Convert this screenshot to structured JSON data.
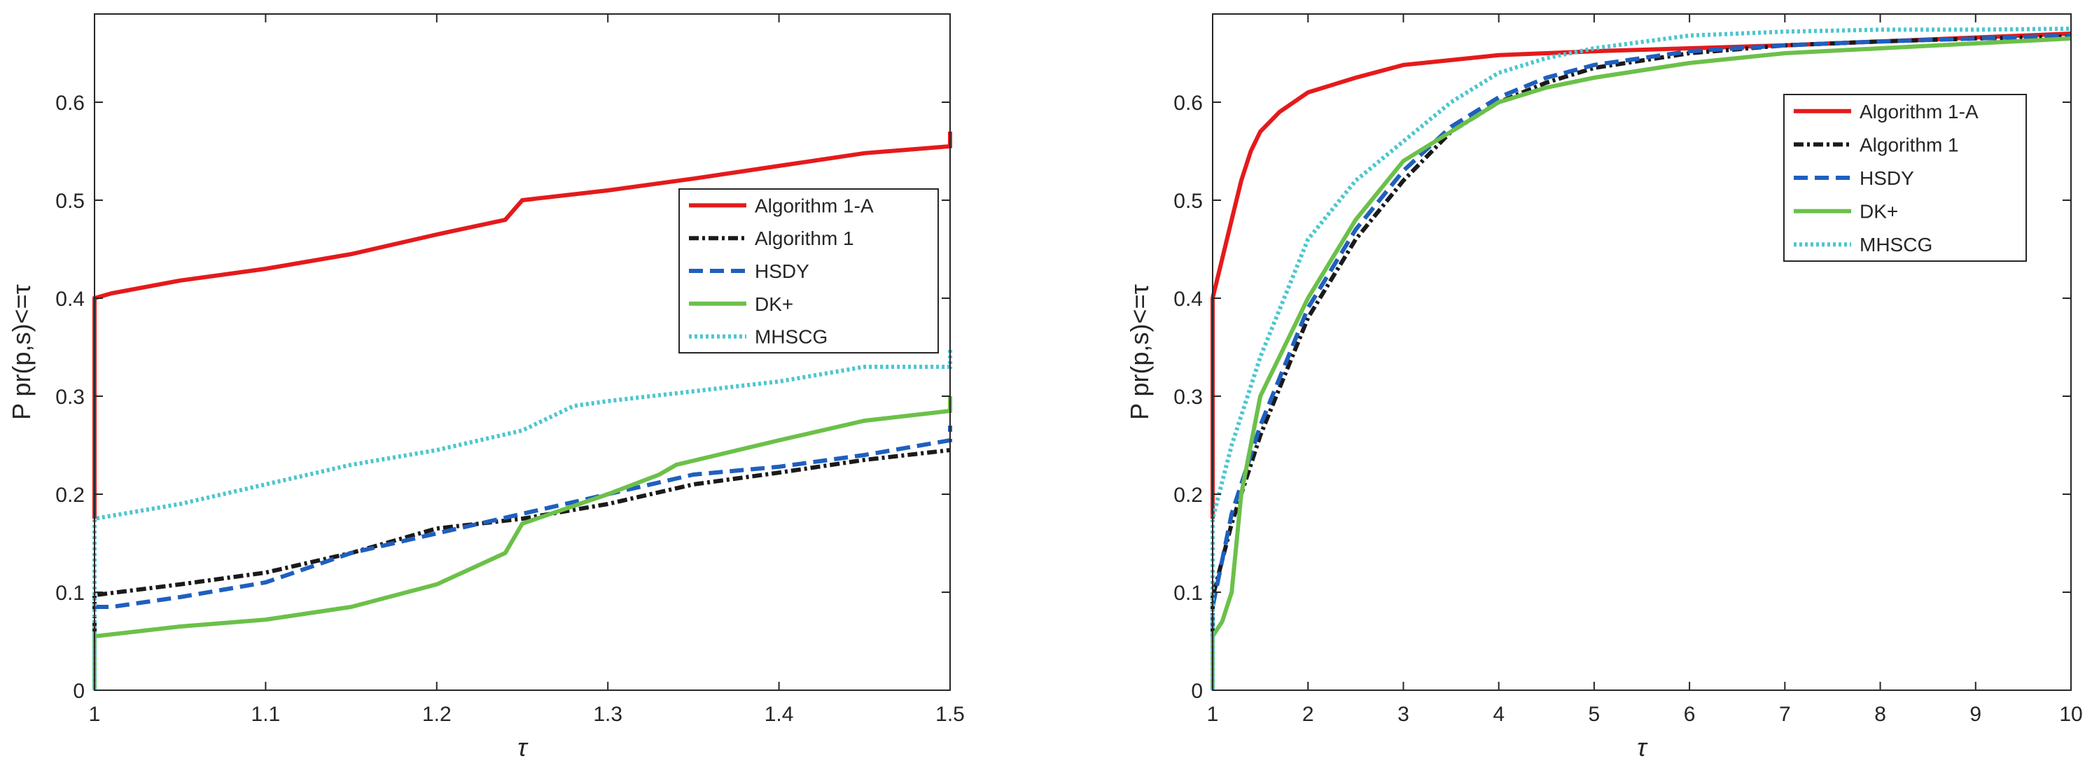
{
  "legend_labels": [
    "Algorithm 1-A",
    "Algorithm 1",
    "HSDY",
    "DK+",
    "MHSCG"
  ],
  "colors": {
    "Algorithm 1-A": "#e41a1c",
    "Algorithm 1": "#1a1a1a",
    "HSDY": "#1f5fbf",
    "DK+": "#6cc04a",
    "MHSCG": "#4cc6d0"
  },
  "chart_data": [
    {
      "type": "line",
      "title": "",
      "xlabel": "τ",
      "ylabel": "P pr(p,s)<=τ",
      "xlim": [
        1,
        1.5
      ],
      "ylim": [
        0,
        0.69
      ],
      "xticks": [
        1,
        1.1,
        1.2,
        1.3,
        1.4,
        1.5
      ],
      "xtick_labels": [
        "1",
        "1.1",
        "1.2",
        "1.3",
        "1.4",
        "1.5"
      ],
      "yticks": [
        0,
        0.1,
        0.2,
        0.3,
        0.4,
        0.5,
        0.6
      ],
      "ytick_labels": [
        "0",
        "0.1",
        "0.2",
        "0.3",
        "0.4",
        "0.5",
        "0.6"
      ],
      "legend_position": "right-middle",
      "series": [
        {
          "name": "Algorithm 1-A",
          "x": [
            1,
            1,
            1.01,
            1.05,
            1.1,
            1.15,
            1.2,
            1.24,
            1.25,
            1.3,
            1.35,
            1.4,
            1.45,
            1.5,
            1.5
          ],
          "y": [
            0.175,
            0.4,
            0.405,
            0.418,
            0.43,
            0.445,
            0.465,
            0.48,
            0.5,
            0.51,
            0.522,
            0.535,
            0.548,
            0.555,
            0.57
          ]
        },
        {
          "name": "Algorithm 1",
          "x": [
            1,
            1,
            1.05,
            1.1,
            1.15,
            1.2,
            1.25,
            1.3,
            1.35,
            1.4,
            1.45,
            1.5
          ],
          "y": [
            0.0,
            0.097,
            0.108,
            0.12,
            0.14,
            0.165,
            0.175,
            0.19,
            0.21,
            0.222,
            0.235,
            0.245
          ]
        },
        {
          "name": "HSDY",
          "x": [
            1,
            1.01,
            1.05,
            1.1,
            1.15,
            1.2,
            1.25,
            1.3,
            1.35,
            1.4,
            1.45,
            1.5,
            1.5
          ],
          "y": [
            0.085,
            0.085,
            0.095,
            0.11,
            0.14,
            0.16,
            0.18,
            0.2,
            0.22,
            0.228,
            0.24,
            0.255,
            0.27
          ]
        },
        {
          "name": "DK+",
          "x": [
            1,
            1,
            1.05,
            1.1,
            1.15,
            1.2,
            1.24,
            1.25,
            1.3,
            1.33,
            1.34,
            1.4,
            1.45,
            1.5,
            1.5
          ],
          "y": [
            0.0,
            0.055,
            0.065,
            0.072,
            0.085,
            0.108,
            0.14,
            0.17,
            0.2,
            0.22,
            0.23,
            0.255,
            0.275,
            0.285,
            0.3
          ]
        },
        {
          "name": "MHSCG",
          "x": [
            1,
            1,
            1.05,
            1.1,
            1.15,
            1.2,
            1.25,
            1.28,
            1.3,
            1.35,
            1.4,
            1.45,
            1.5,
            1.5
          ],
          "y": [
            0.0,
            0.175,
            0.19,
            0.21,
            0.23,
            0.245,
            0.265,
            0.29,
            0.295,
            0.305,
            0.315,
            0.33,
            0.33,
            0.35
          ]
        }
      ]
    },
    {
      "type": "line",
      "title": "",
      "xlabel": "τ",
      "ylabel": "P pr(p,s)<=τ",
      "xlim": [
        1,
        10
      ],
      "ylim": [
        0,
        0.69
      ],
      "xticks": [
        1,
        2,
        3,
        4,
        5,
        6,
        7,
        8,
        9,
        10
      ],
      "xtick_labels": [
        "1",
        "2",
        "3",
        "4",
        "5",
        "6",
        "7",
        "8",
        "9",
        "10"
      ],
      "yticks": [
        0,
        0.1,
        0.2,
        0.3,
        0.4,
        0.5,
        0.6
      ],
      "ytick_labels": [
        "0",
        "0.1",
        "0.2",
        "0.3",
        "0.4",
        "0.5",
        "0.6"
      ],
      "legend_position": "top-right",
      "series": [
        {
          "name": "Algorithm 1-A",
          "x": [
            1,
            1,
            1.1,
            1.2,
            1.3,
            1.4,
            1.5,
            1.7,
            2,
            2.5,
            3,
            4,
            5,
            6,
            7,
            8,
            9,
            10
          ],
          "y": [
            0.175,
            0.4,
            0.44,
            0.48,
            0.52,
            0.55,
            0.57,
            0.59,
            0.61,
            0.625,
            0.638,
            0.648,
            0.652,
            0.655,
            0.658,
            0.662,
            0.666,
            0.67
          ]
        },
        {
          "name": "Algorithm 1",
          "x": [
            1,
            1,
            1.2,
            1.5,
            2,
            2.5,
            3,
            3.5,
            4,
            4.5,
            5,
            6,
            7,
            8,
            9,
            10
          ],
          "y": [
            0.0,
            0.095,
            0.17,
            0.26,
            0.38,
            0.46,
            0.52,
            0.57,
            0.6,
            0.62,
            0.635,
            0.65,
            0.658,
            0.662,
            0.665,
            0.667
          ]
        },
        {
          "name": "HSDY",
          "x": [
            1,
            1,
            1.2,
            1.5,
            2,
            2.5,
            3,
            3.5,
            4,
            4.5,
            5,
            6,
            7,
            8,
            9,
            10
          ],
          "y": [
            0.0,
            0.085,
            0.18,
            0.27,
            0.39,
            0.47,
            0.53,
            0.575,
            0.605,
            0.625,
            0.638,
            0.652,
            0.658,
            0.662,
            0.665,
            0.668
          ]
        },
        {
          "name": "DK+",
          "x": [
            1,
            1,
            1.1,
            1.2,
            1.3,
            1.5,
            2,
            2.5,
            3,
            3.5,
            4,
            4.5,
            5,
            6,
            7,
            8,
            9,
            10
          ],
          "y": [
            0.0,
            0.055,
            0.07,
            0.1,
            0.2,
            0.3,
            0.4,
            0.48,
            0.54,
            0.57,
            0.6,
            0.615,
            0.625,
            0.64,
            0.65,
            0.655,
            0.66,
            0.665
          ]
        },
        {
          "name": "MHSCG",
          "x": [
            1,
            1,
            1.2,
            1.5,
            2,
            2.5,
            3,
            3.5,
            4,
            4.5,
            5,
            6,
            7,
            8,
            9,
            10
          ],
          "y": [
            0.0,
            0.175,
            0.25,
            0.34,
            0.46,
            0.52,
            0.56,
            0.6,
            0.63,
            0.645,
            0.655,
            0.668,
            0.672,
            0.674,
            0.674,
            0.675
          ]
        }
      ]
    }
  ]
}
